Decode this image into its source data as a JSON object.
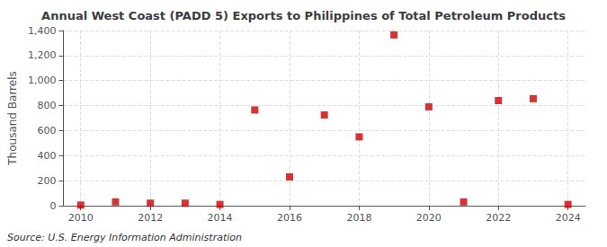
{
  "chart_data": {
    "type": "scatter",
    "title": "Annual West Coast (PADD 5) Exports to Philippines of Total Petroleum Products",
    "ylabel": "Thousand Barrels",
    "source": "Source: U.S. Energy Information Administration",
    "x": [
      2010,
      2011,
      2012,
      2013,
      2014,
      2015,
      2016,
      2017,
      2018,
      2019,
      2020,
      2021,
      2022,
      2023,
      2024
    ],
    "values": [
      5,
      30,
      20,
      20,
      10,
      765,
      230,
      725,
      550,
      1365,
      790,
      30,
      840,
      855,
      10
    ],
    "xlim": [
      2009.5,
      2024.5
    ],
    "xticks": [
      2010,
      2012,
      2014,
      2016,
      2018,
      2020,
      2022,
      2024
    ],
    "ylim": [
      0,
      1400
    ],
    "yticks": [
      0,
      200,
      400,
      600,
      800,
      {
        "value": 1000,
        "label": "1,000"
      },
      {
        "value": 1200,
        "label": "1,200"
      },
      {
        "value": 1400,
        "label": "1,400"
      }
    ],
    "color": "#cc0000",
    "marker": "square",
    "grid": true
  }
}
